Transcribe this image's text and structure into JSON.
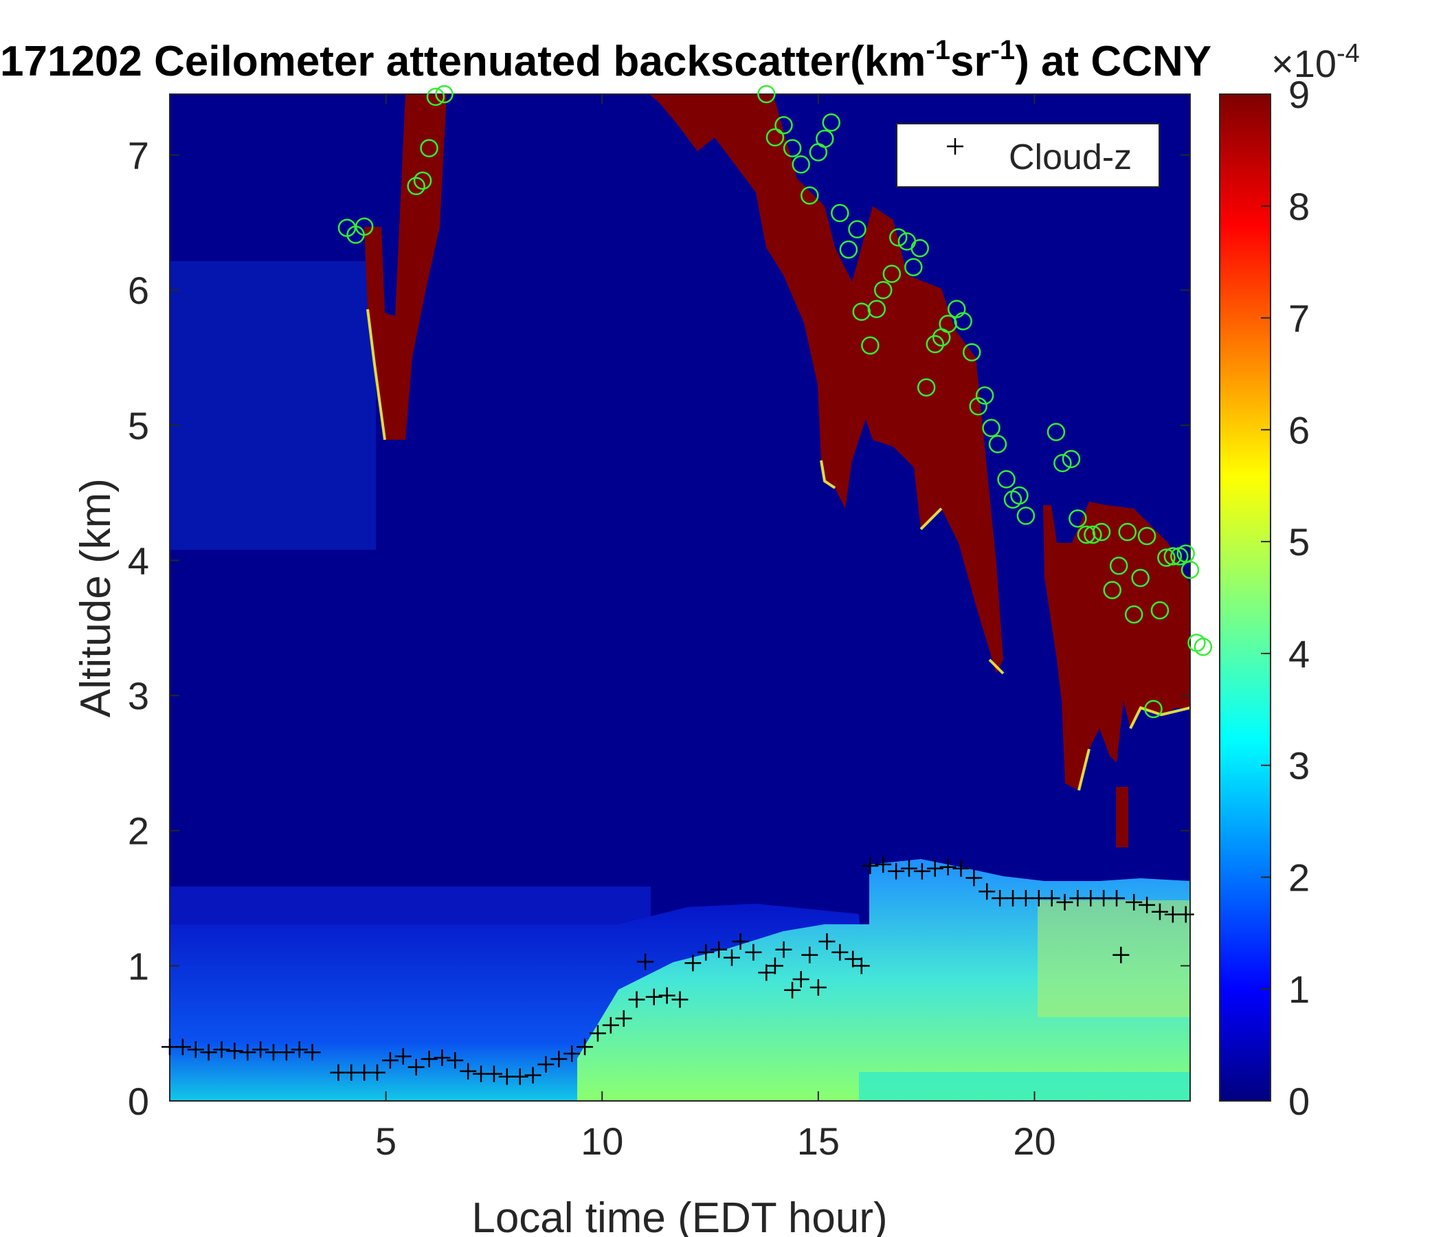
{
  "chart_data": {
    "type": "heatmap",
    "title": {
      "prefix": "171202 Ceilometer attenuated backscatter(km",
      "sup1": "-1",
      "mid": "sr",
      "sup2": "-1",
      "suffix": ") at CCNY"
    },
    "xlabel": "Local time (EDT hour)",
    "ylabel": "Altitude (km)",
    "xlim": [
      0,
      23.6
    ],
    "ylim": [
      0,
      7.45
    ],
    "xticks": [
      5,
      10,
      15,
      20
    ],
    "xtick_labels": [
      "5",
      "10",
      "15",
      "20"
    ],
    "yticks": [
      0,
      1,
      2,
      3,
      4,
      5,
      6,
      7
    ],
    "ytick_labels": [
      "0",
      "1",
      "2",
      "3",
      "4",
      "5",
      "6",
      "7"
    ],
    "colorbar": {
      "range": [
        0,
        9
      ],
      "ticks": [
        0,
        1,
        2,
        3,
        4,
        5,
        6,
        7,
        8,
        9
      ],
      "tick_labels": [
        "0",
        "1",
        "2",
        "3",
        "4",
        "5",
        "6",
        "7",
        "8",
        "9"
      ],
      "exponent_label": "×10",
      "exponent": "-4",
      "colormap": "jet",
      "colors": [
        "#00007f",
        "#0000ff",
        "#007fff",
        "#00ffff",
        "#7fff7f",
        "#ffff00",
        "#ff7f00",
        "#ff0000",
        "#7f0000"
      ]
    },
    "legend": {
      "placement": "top-right",
      "entries": [
        {
          "label": "Cloud-z",
          "marker": "+",
          "color": "#000000"
        }
      ]
    },
    "series": [
      {
        "name": "Cloud-z",
        "marker": "plus",
        "color": "#000000",
        "points": [
          [
            0.0,
            0.4
          ],
          [
            0.3,
            0.4
          ],
          [
            0.6,
            0.38
          ],
          [
            0.9,
            0.36
          ],
          [
            1.2,
            0.38
          ],
          [
            1.5,
            0.37
          ],
          [
            1.8,
            0.36
          ],
          [
            2.1,
            0.38
          ],
          [
            2.4,
            0.36
          ],
          [
            2.7,
            0.36
          ],
          [
            3.0,
            0.38
          ],
          [
            3.3,
            0.36
          ],
          [
            3.9,
            0.21
          ],
          [
            4.2,
            0.21
          ],
          [
            4.5,
            0.21
          ],
          [
            4.8,
            0.21
          ],
          [
            5.1,
            0.3
          ],
          [
            5.4,
            0.33
          ],
          [
            5.7,
            0.25
          ],
          [
            6.0,
            0.31
          ],
          [
            6.3,
            0.32
          ],
          [
            6.6,
            0.3
          ],
          [
            6.9,
            0.22
          ],
          [
            7.2,
            0.2
          ],
          [
            7.5,
            0.2
          ],
          [
            7.8,
            0.18
          ],
          [
            8.1,
            0.18
          ],
          [
            8.4,
            0.19
          ],
          [
            8.7,
            0.27
          ],
          [
            9.0,
            0.31
          ],
          [
            9.3,
            0.35
          ],
          [
            9.6,
            0.4
          ],
          [
            9.9,
            0.5
          ],
          [
            10.2,
            0.56
          ],
          [
            10.5,
            0.61
          ],
          [
            10.8,
            0.75
          ],
          [
            11.0,
            1.03
          ],
          [
            11.2,
            0.77
          ],
          [
            11.5,
            0.78
          ],
          [
            11.8,
            0.75
          ],
          [
            12.1,
            1.02
          ],
          [
            12.4,
            1.1
          ],
          [
            12.7,
            1.12
          ],
          [
            13.0,
            1.06
          ],
          [
            13.2,
            1.18
          ],
          [
            13.5,
            1.1
          ],
          [
            13.8,
            0.95
          ],
          [
            14.0,
            1.0
          ],
          [
            14.2,
            1.12
          ],
          [
            14.4,
            0.82
          ],
          [
            14.6,
            0.9
          ],
          [
            14.8,
            1.08
          ],
          [
            15.0,
            0.84
          ],
          [
            15.2,
            1.18
          ],
          [
            15.5,
            1.1
          ],
          [
            15.8,
            1.05
          ],
          [
            16.0,
            1.0
          ],
          [
            16.2,
            1.74
          ],
          [
            16.5,
            1.75
          ],
          [
            16.8,
            1.7
          ],
          [
            17.1,
            1.72
          ],
          [
            17.4,
            1.7
          ],
          [
            17.7,
            1.72
          ],
          [
            18.0,
            1.73
          ],
          [
            18.3,
            1.72
          ],
          [
            18.6,
            1.65
          ],
          [
            18.9,
            1.55
          ],
          [
            19.2,
            1.5
          ],
          [
            19.5,
            1.5
          ],
          [
            19.8,
            1.5
          ],
          [
            20.1,
            1.5
          ],
          [
            20.4,
            1.5
          ],
          [
            20.7,
            1.47
          ],
          [
            21.0,
            1.5
          ],
          [
            21.3,
            1.5
          ],
          [
            21.6,
            1.5
          ],
          [
            21.9,
            1.5
          ],
          [
            22.0,
            1.08
          ],
          [
            22.3,
            1.47
          ],
          [
            22.6,
            1.45
          ],
          [
            22.9,
            1.4
          ],
          [
            23.2,
            1.38
          ],
          [
            23.5,
            1.38
          ]
        ]
      },
      {
        "name": "",
        "marker": "circle",
        "color": "#33ee33",
        "points": [
          [
            4.1,
            6.46
          ],
          [
            4.3,
            6.41
          ],
          [
            4.5,
            6.47
          ],
          [
            5.7,
            6.77
          ],
          [
            5.85,
            6.81
          ],
          [
            6.0,
            7.05
          ],
          [
            6.15,
            7.43
          ],
          [
            6.35,
            7.45
          ],
          [
            13.8,
            7.45
          ],
          [
            14.0,
            7.13
          ],
          [
            14.2,
            7.22
          ],
          [
            14.4,
            7.05
          ],
          [
            14.6,
            6.93
          ],
          [
            14.8,
            6.7
          ],
          [
            15.0,
            7.02
          ],
          [
            15.15,
            7.12
          ],
          [
            15.3,
            7.24
          ],
          [
            15.5,
            6.57
          ],
          [
            15.7,
            6.3
          ],
          [
            15.9,
            6.45
          ],
          [
            16.0,
            5.84
          ],
          [
            16.2,
            5.59
          ],
          [
            16.35,
            5.86
          ],
          [
            16.5,
            6.0
          ],
          [
            16.7,
            6.12
          ],
          [
            16.85,
            6.39
          ],
          [
            17.05,
            6.36
          ],
          [
            17.2,
            6.17
          ],
          [
            17.35,
            6.31
          ],
          [
            17.5,
            5.28
          ],
          [
            17.7,
            5.6
          ],
          [
            17.85,
            5.65
          ],
          [
            18.0,
            5.75
          ],
          [
            18.2,
            5.86
          ],
          [
            18.35,
            5.77
          ],
          [
            18.55,
            5.54
          ],
          [
            18.7,
            5.14
          ],
          [
            18.85,
            5.22
          ],
          [
            19.0,
            4.98
          ],
          [
            19.15,
            4.86
          ],
          [
            19.35,
            4.6
          ],
          [
            19.5,
            4.45
          ],
          [
            19.65,
            4.48
          ],
          [
            19.8,
            4.33
          ],
          [
            20.5,
            4.95
          ],
          [
            20.65,
            4.72
          ],
          [
            20.85,
            4.75
          ],
          [
            21.0,
            4.31
          ],
          [
            21.2,
            4.19
          ],
          [
            21.35,
            4.19
          ],
          [
            21.55,
            4.21
          ],
          [
            21.8,
            3.78
          ],
          [
            21.95,
            3.96
          ],
          [
            22.15,
            4.21
          ],
          [
            22.3,
            3.6
          ],
          [
            22.45,
            3.87
          ],
          [
            22.6,
            4.18
          ],
          [
            22.75,
            2.9
          ],
          [
            22.9,
            3.63
          ],
          [
            23.05,
            4.02
          ],
          [
            23.2,
            4.03
          ],
          [
            23.35,
            4.03
          ],
          [
            23.5,
            4.05
          ],
          [
            23.6,
            3.93
          ],
          [
            23.75,
            3.39
          ],
          [
            23.9,
            3.36
          ]
        ]
      }
    ]
  }
}
